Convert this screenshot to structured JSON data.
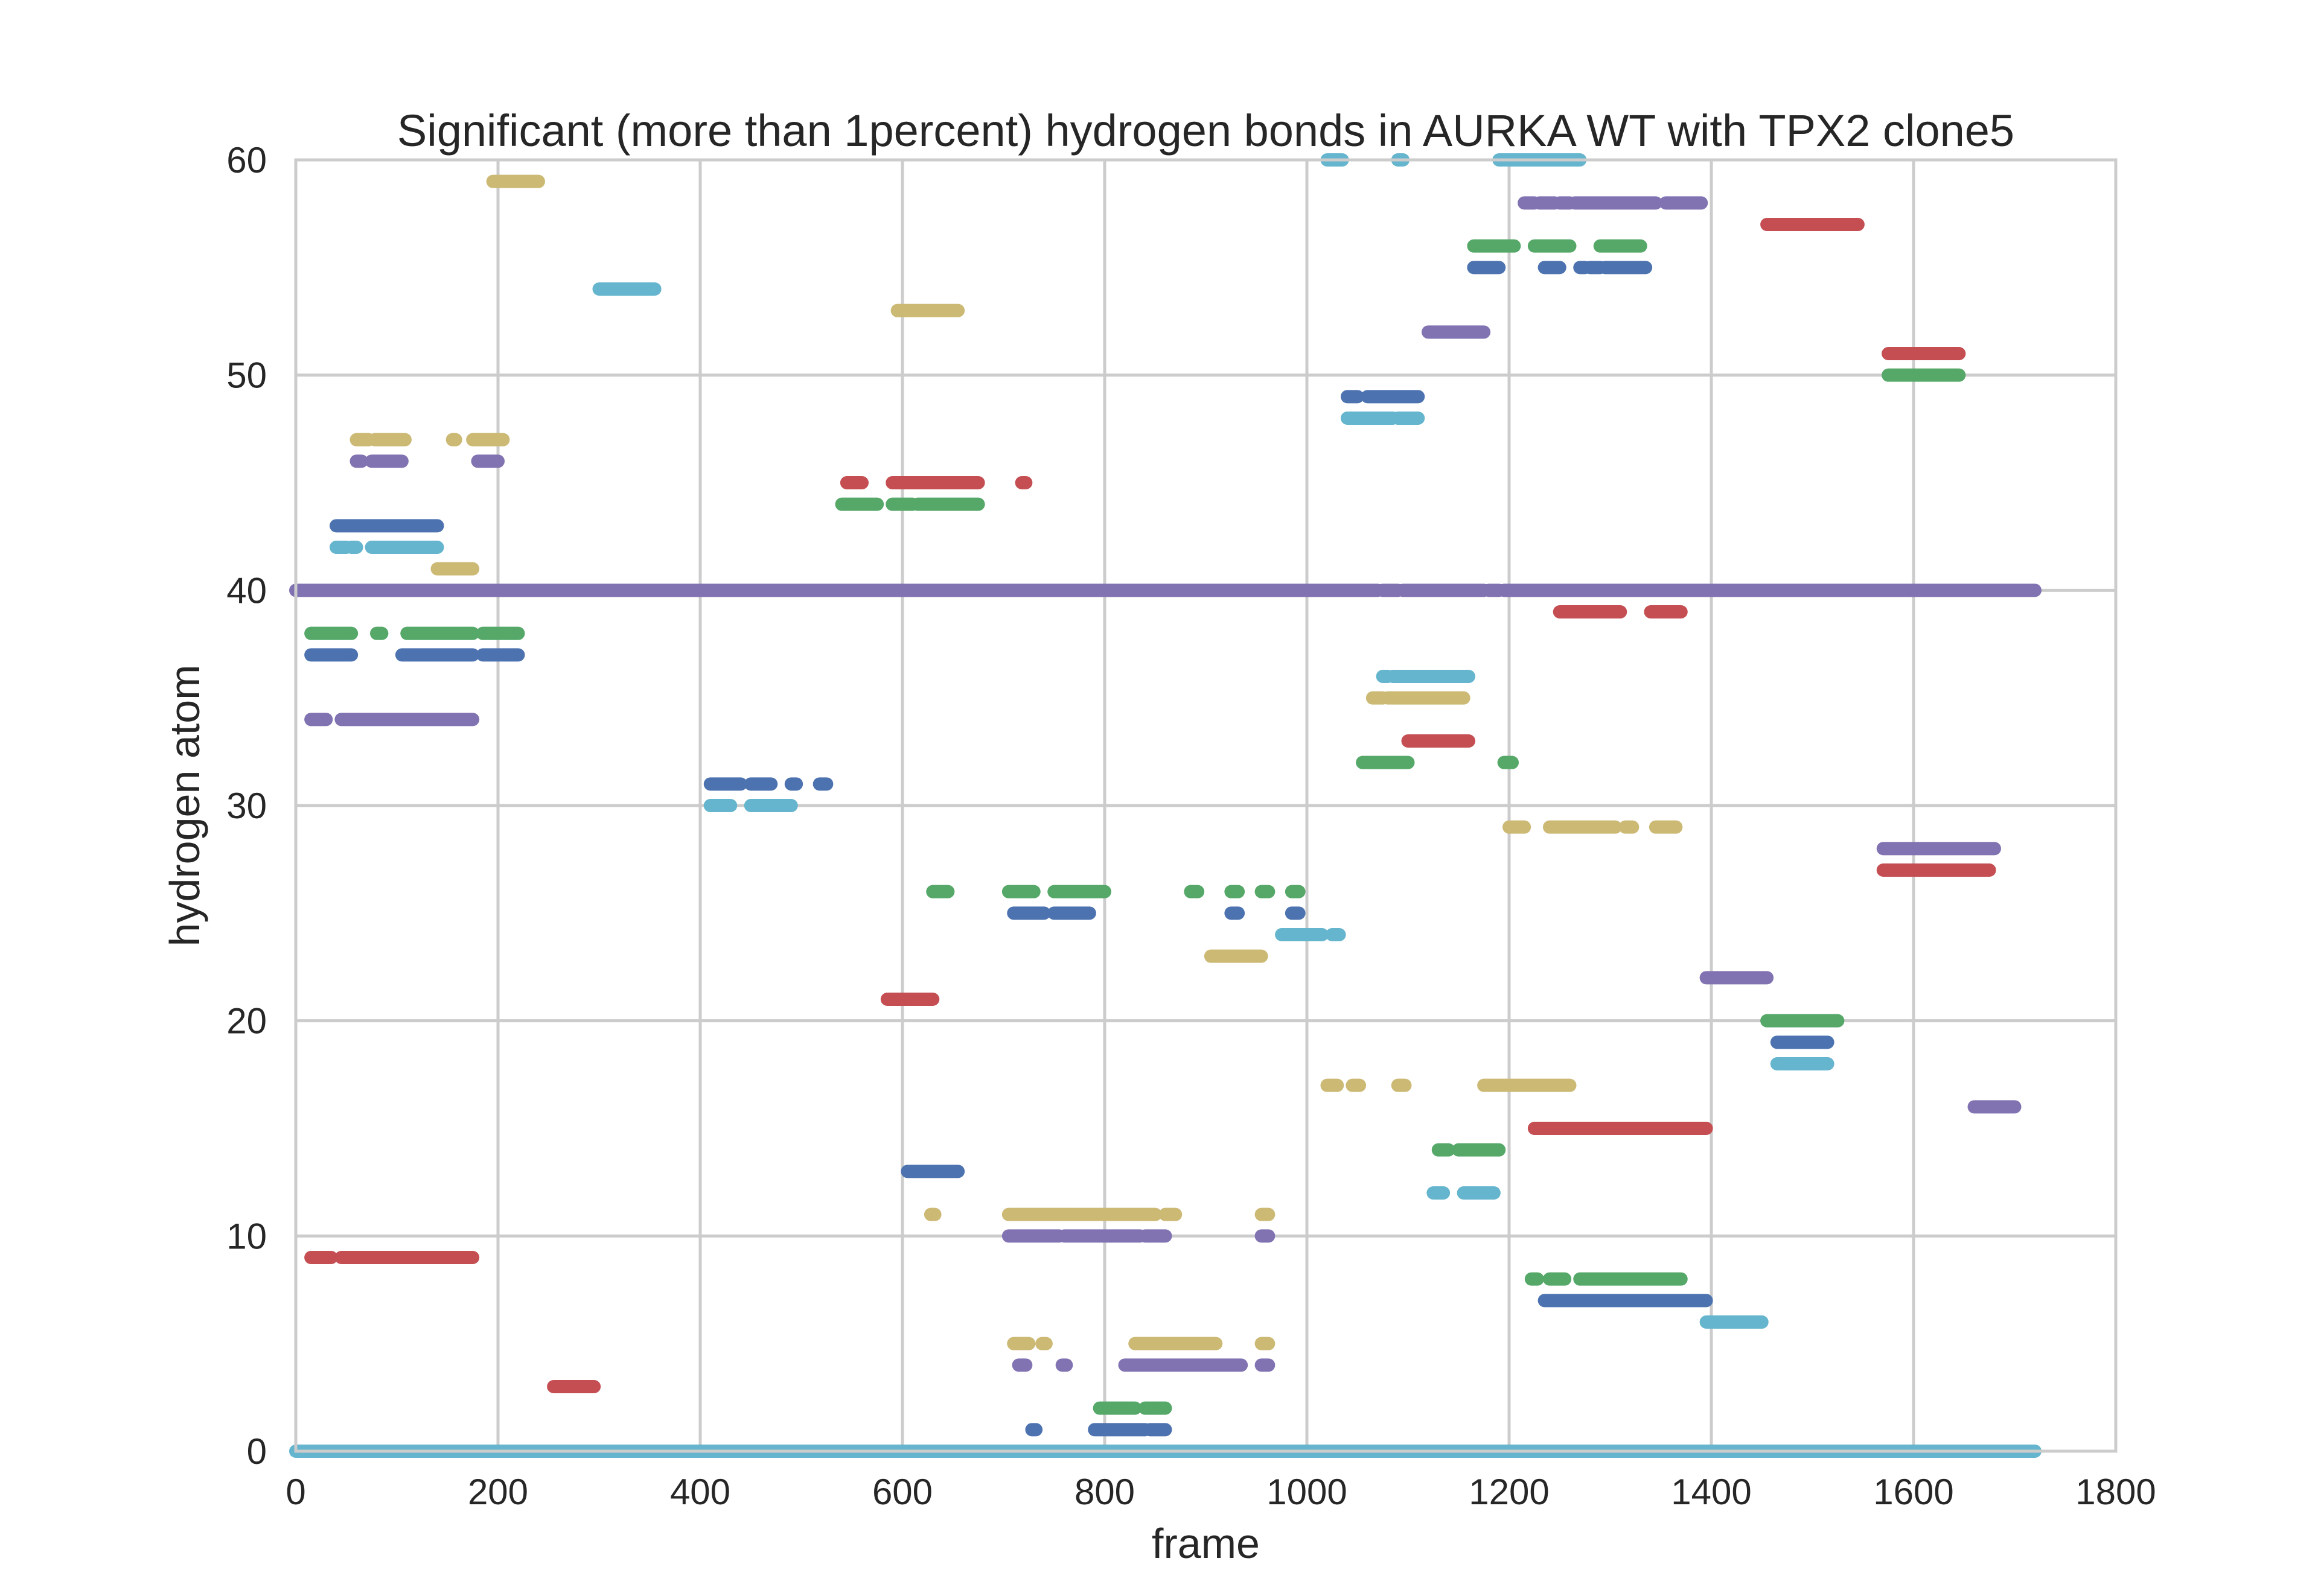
{
  "chart_data": {
    "type": "scatter",
    "title": "Significant (more than 1percent) hydrogen bonds in AURKA WT with TPX2 clone5",
    "xlabel": "frame",
    "ylabel": "hydrogen atom",
    "xlim": [
      0,
      1800
    ],
    "ylim": [
      0,
      60
    ],
    "xticks": [
      0,
      200,
      400,
      600,
      800,
      1000,
      1200,
      1400,
      1600,
      1800
    ],
    "yticks": [
      0,
      10,
      20,
      30,
      40,
      50,
      60
    ],
    "grid": true,
    "legend": "none",
    "colors": {
      "blue": "#4c72b0",
      "green": "#55a868",
      "red": "#c44e52",
      "purple": "#8172b2",
      "gold": "#ccb974",
      "cyan": "#64b5cd"
    },
    "series": [
      {
        "color": "cyan",
        "y": 0,
        "segments": [
          [
            0,
            1720
          ]
        ]
      },
      {
        "color": "blue",
        "y": 1,
        "segments": [
          [
            728,
            732
          ],
          [
            790,
            840
          ],
          [
            845,
            860
          ]
        ]
      },
      {
        "color": "green",
        "y": 2,
        "segments": [
          [
            795,
            830
          ],
          [
            840,
            860
          ]
        ]
      },
      {
        "color": "red",
        "y": 3,
        "segments": [
          [
            255,
            295
          ]
        ]
      },
      {
        "color": "purple",
        "y": 4,
        "segments": [
          [
            715,
            722
          ],
          [
            758,
            762
          ],
          [
            820,
            935
          ],
          [
            955,
            962
          ]
        ]
      },
      {
        "color": "gold",
        "y": 5,
        "segments": [
          [
            710,
            725
          ],
          [
            738,
            742
          ],
          [
            830,
            910
          ],
          [
            955,
            962
          ]
        ]
      },
      {
        "color": "cyan",
        "y": 6,
        "segments": [
          [
            1395,
            1450
          ]
        ]
      },
      {
        "color": "blue",
        "y": 7,
        "segments": [
          [
            1235,
            1395
          ]
        ]
      },
      {
        "color": "green",
        "y": 8,
        "segments": [
          [
            1222,
            1228
          ],
          [
            1240,
            1255
          ],
          [
            1270,
            1370
          ]
        ]
      },
      {
        "color": "red",
        "y": 9,
        "segments": [
          [
            15,
            35
          ],
          [
            45,
            175
          ]
        ]
      },
      {
        "color": "purple",
        "y": 10,
        "segments": [
          [
            705,
            755
          ],
          [
            760,
            835
          ],
          [
            840,
            860
          ],
          [
            955,
            962
          ]
        ]
      },
      {
        "color": "gold",
        "y": 11,
        "segments": [
          [
            628,
            632
          ],
          [
            705,
            850
          ],
          [
            860,
            870
          ],
          [
            955,
            962
          ]
        ]
      },
      {
        "color": "cyan",
        "y": 12,
        "segments": [
          [
            1125,
            1135
          ],
          [
            1155,
            1185
          ]
        ]
      },
      {
        "color": "blue",
        "y": 13,
        "segments": [
          [
            605,
            655
          ]
        ]
      },
      {
        "color": "green",
        "y": 14,
        "segments": [
          [
            1130,
            1140
          ],
          [
            1150,
            1190
          ]
        ]
      },
      {
        "color": "red",
        "y": 15,
        "segments": [
          [
            1225,
            1395
          ]
        ]
      },
      {
        "color": "purple",
        "y": 16,
        "segments": [
          [
            1660,
            1700
          ]
        ]
      },
      {
        "color": "gold",
        "y": 17,
        "segments": [
          [
            1020,
            1030
          ],
          [
            1045,
            1052
          ],
          [
            1090,
            1097
          ],
          [
            1175,
            1260
          ]
        ]
      },
      {
        "color": "cyan",
        "y": 18,
        "segments": [
          [
            1465,
            1515
          ]
        ]
      },
      {
        "color": "blue",
        "y": 19,
        "segments": [
          [
            1465,
            1515
          ]
        ]
      },
      {
        "color": "green",
        "y": 20,
        "segments": [
          [
            1455,
            1525
          ]
        ]
      },
      {
        "color": "red",
        "y": 21,
        "segments": [
          [
            585,
            630
          ]
        ]
      },
      {
        "color": "purple",
        "y": 22,
        "segments": [
          [
            1395,
            1455
          ]
        ]
      },
      {
        "color": "gold",
        "y": 23,
        "segments": [
          [
            905,
            955
          ]
        ]
      },
      {
        "color": "cyan",
        "y": 24,
        "segments": [
          [
            975,
            1015
          ],
          [
            1025,
            1032
          ]
        ]
      },
      {
        "color": "blue",
        "y": 25,
        "segments": [
          [
            710,
            740
          ],
          [
            750,
            785
          ],
          [
            925,
            932
          ],
          [
            985,
            992
          ]
        ]
      },
      {
        "color": "green",
        "y": 26,
        "segments": [
          [
            630,
            645
          ],
          [
            705,
            730
          ],
          [
            750,
            800
          ],
          [
            885,
            892
          ],
          [
            925,
            932
          ],
          [
            955,
            962
          ],
          [
            985,
            992
          ]
        ]
      },
      {
        "color": "red",
        "y": 27,
        "segments": [
          [
            1570,
            1675
          ]
        ]
      },
      {
        "color": "purple",
        "y": 28,
        "segments": [
          [
            1570,
            1680
          ]
        ]
      },
      {
        "color": "gold",
        "y": 29,
        "segments": [
          [
            1200,
            1215
          ],
          [
            1240,
            1305
          ],
          [
            1315,
            1322
          ],
          [
            1345,
            1365
          ]
        ]
      },
      {
        "color": "cyan",
        "y": 30,
        "segments": [
          [
            410,
            430
          ],
          [
            450,
            490
          ]
        ]
      },
      {
        "color": "blue",
        "y": 31,
        "segments": [
          [
            410,
            440
          ],
          [
            450,
            470
          ],
          [
            490,
            495
          ],
          [
            518,
            525
          ]
        ]
      },
      {
        "color": "green",
        "y": 32,
        "segments": [
          [
            1055,
            1100
          ],
          [
            1195,
            1203
          ]
        ]
      },
      {
        "color": "red",
        "y": 33,
        "segments": [
          [
            1100,
            1160
          ]
        ]
      },
      {
        "color": "purple",
        "y": 34,
        "segments": [
          [
            15,
            30
          ],
          [
            45,
            175
          ]
        ]
      },
      {
        "color": "gold",
        "y": 35,
        "segments": [
          [
            1065,
            1075
          ],
          [
            1080,
            1155
          ]
        ]
      },
      {
        "color": "cyan",
        "y": 36,
        "segments": [
          [
            1075,
            1080
          ],
          [
            1085,
            1160
          ]
        ]
      },
      {
        "color": "blue",
        "y": 37,
        "segments": [
          [
            15,
            55
          ],
          [
            105,
            175
          ],
          [
            185,
            220
          ]
        ]
      },
      {
        "color": "green",
        "y": 38,
        "segments": [
          [
            15,
            55
          ],
          [
            80,
            85
          ],
          [
            110,
            175
          ],
          [
            185,
            220
          ]
        ]
      },
      {
        "color": "red",
        "y": 39,
        "segments": [
          [
            1250,
            1310
          ],
          [
            1340,
            1370
          ]
        ]
      },
      {
        "color": "purple",
        "y": 40,
        "segments": [
          [
            0,
            1070
          ],
          [
            1075,
            1090
          ],
          [
            1095,
            1175
          ],
          [
            1180,
            1190
          ],
          [
            1195,
            1720
          ]
        ]
      },
      {
        "color": "gold",
        "y": 41,
        "segments": [
          [
            140,
            175
          ]
        ]
      },
      {
        "color": "cyan",
        "y": 42,
        "segments": [
          [
            40,
            50
          ],
          [
            55,
            60
          ],
          [
            75,
            140
          ]
        ]
      },
      {
        "color": "blue",
        "y": 43,
        "segments": [
          [
            40,
            140
          ]
        ]
      },
      {
        "color": "green",
        "y": 44,
        "segments": [
          [
            540,
            575
          ],
          [
            590,
            610
          ],
          [
            615,
            675
          ]
        ]
      },
      {
        "color": "red",
        "y": 45,
        "segments": [
          [
            545,
            560
          ],
          [
            590,
            675
          ],
          [
            718,
            722
          ]
        ]
      },
      {
        "color": "purple",
        "y": 46,
        "segments": [
          [
            60,
            65
          ],
          [
            75,
            105
          ],
          [
            180,
            200
          ]
        ]
      },
      {
        "color": "gold",
        "y": 47,
        "segments": [
          [
            60,
            72
          ],
          [
            78,
            98
          ],
          [
            100,
            108
          ],
          [
            155,
            158
          ],
          [
            175,
            205
          ]
        ]
      },
      {
        "color": "cyan",
        "y": 48,
        "segments": [
          [
            1040,
            1085
          ],
          [
            1090,
            1110
          ]
        ]
      },
      {
        "color": "blue",
        "y": 49,
        "segments": [
          [
            1040,
            1050
          ],
          [
            1060,
            1110
          ]
        ]
      },
      {
        "color": "green",
        "y": 50,
        "segments": [
          [
            1575,
            1645
          ]
        ]
      },
      {
        "color": "red",
        "y": 51,
        "segments": [
          [
            1575,
            1645
          ]
        ]
      },
      {
        "color": "purple",
        "y": 52,
        "segments": [
          [
            1120,
            1175
          ]
        ]
      },
      {
        "color": "gold",
        "y": 53,
        "segments": [
          [
            595,
            655
          ]
        ]
      },
      {
        "color": "cyan",
        "y": 54,
        "segments": [
          [
            300,
            355
          ]
        ]
      },
      {
        "color": "blue",
        "y": 55,
        "segments": [
          [
            1165,
            1190
          ],
          [
            1235,
            1250
          ],
          [
            1270,
            1275
          ],
          [
            1280,
            1290
          ],
          [
            1295,
            1335
          ]
        ]
      },
      {
        "color": "green",
        "y": 56,
        "segments": [
          [
            1165,
            1205
          ],
          [
            1225,
            1260
          ],
          [
            1290,
            1330
          ]
        ]
      },
      {
        "color": "red",
        "y": 57,
        "segments": [
          [
            1455,
            1545
          ]
        ]
      },
      {
        "color": "purple",
        "y": 58,
        "segments": [
          [
            1215,
            1225
          ],
          [
            1230,
            1245
          ],
          [
            1250,
            1260
          ],
          [
            1265,
            1345
          ],
          [
            1355,
            1390
          ]
        ]
      },
      {
        "color": "gold",
        "y": 59,
        "segments": [
          [
            195,
            240
          ]
        ]
      },
      {
        "color": "cyan",
        "y": 60,
        "segments": [
          [
            1020,
            1035
          ],
          [
            1090,
            1095
          ],
          [
            1190,
            1270
          ]
        ]
      }
    ]
  }
}
